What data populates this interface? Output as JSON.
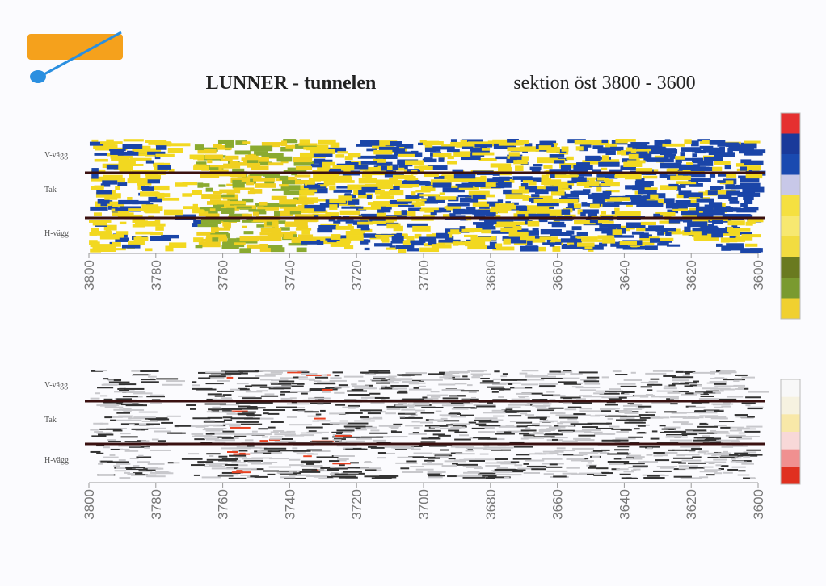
{
  "header": {
    "title": "LUNNER - tunnelen",
    "subtitle": "sektion öst 3800 - 3600"
  },
  "panels": [
    {
      "row_labels": [
        "V-vägg",
        "Tak",
        "H-vägg"
      ],
      "xlim": [
        3800,
        3600
      ],
      "xticks": [
        3800,
        3780,
        3760,
        3740,
        3720,
        3700,
        3680,
        3660,
        3640,
        3620,
        3600
      ]
    },
    {
      "row_labels": [
        "V-vägg",
        "Tak",
        "H-vägg"
      ],
      "xlim": [
        3800,
        3600
      ],
      "xticks": [
        3800,
        3780,
        3760,
        3740,
        3720,
        3700,
        3680,
        3660,
        3640,
        3620,
        3600
      ]
    }
  ]
}
